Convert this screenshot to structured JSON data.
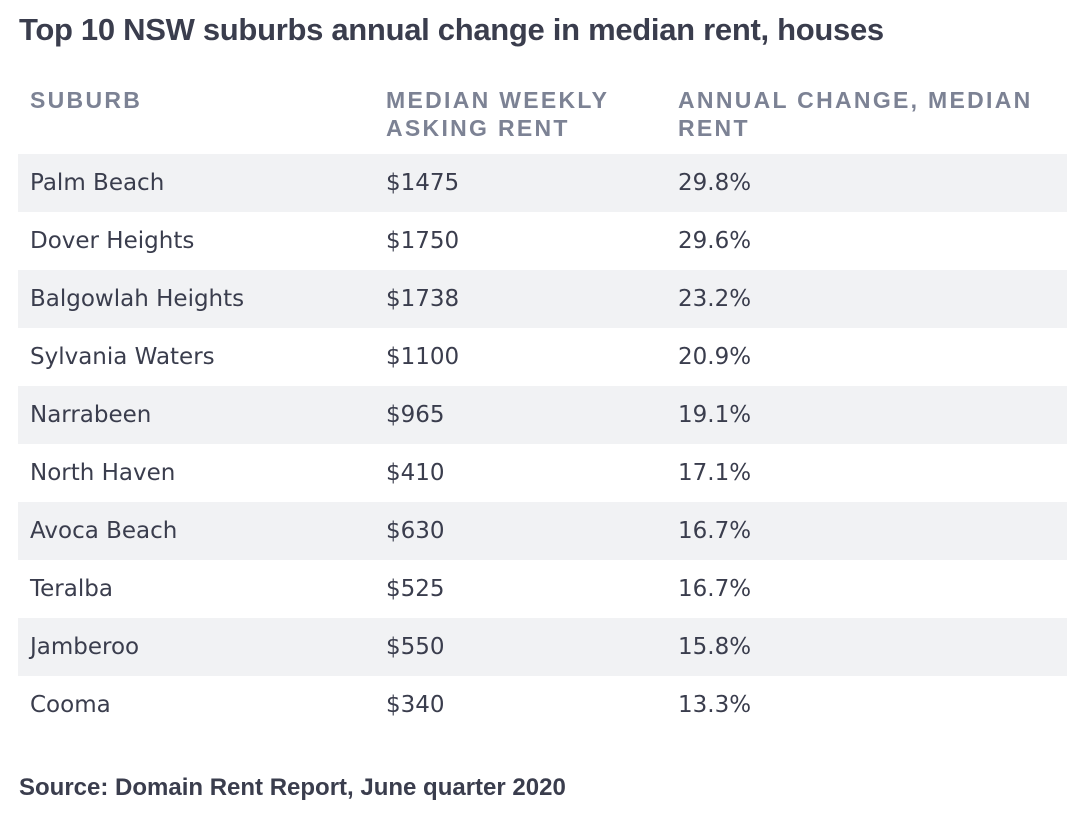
{
  "title": "Top 10 NSW suburbs annual change in median rent, houses",
  "source": "Source: Domain Rent Report, June quarter 2020",
  "chart_data": {
    "type": "table",
    "title": "Top 10 NSW suburbs annual change in median rent, houses",
    "columns": [
      "SUBURB",
      "MEDIAN WEEKLY ASKING RENT",
      "ANNUAL CHANGE, MEDIAN RENT"
    ],
    "rows": [
      [
        "Palm Beach",
        "$1475",
        "29.8%"
      ],
      [
        "Dover Heights",
        "$1750",
        "29.6%"
      ],
      [
        "Balgowlah Heights",
        "$1738",
        "23.2%"
      ],
      [
        "Sylvania Waters",
        "$1100",
        "20.9%"
      ],
      [
        "Narrabeen",
        "$965",
        "19.1%"
      ],
      [
        "North Haven",
        "$410",
        "17.1%"
      ],
      [
        "Avoca Beach",
        "$630",
        "16.7%"
      ],
      [
        "Teralba",
        "$525",
        "16.7%"
      ],
      [
        "Jamberoo",
        "$550",
        "15.8%"
      ],
      [
        "Cooma",
        "$340",
        "13.3%"
      ]
    ],
    "source": "Source: Domain Rent Report, June quarter 2020"
  },
  "colors": {
    "text": "#3a3d4d",
    "header_text": "#7c8294",
    "stripe": "#f1f2f4"
  }
}
